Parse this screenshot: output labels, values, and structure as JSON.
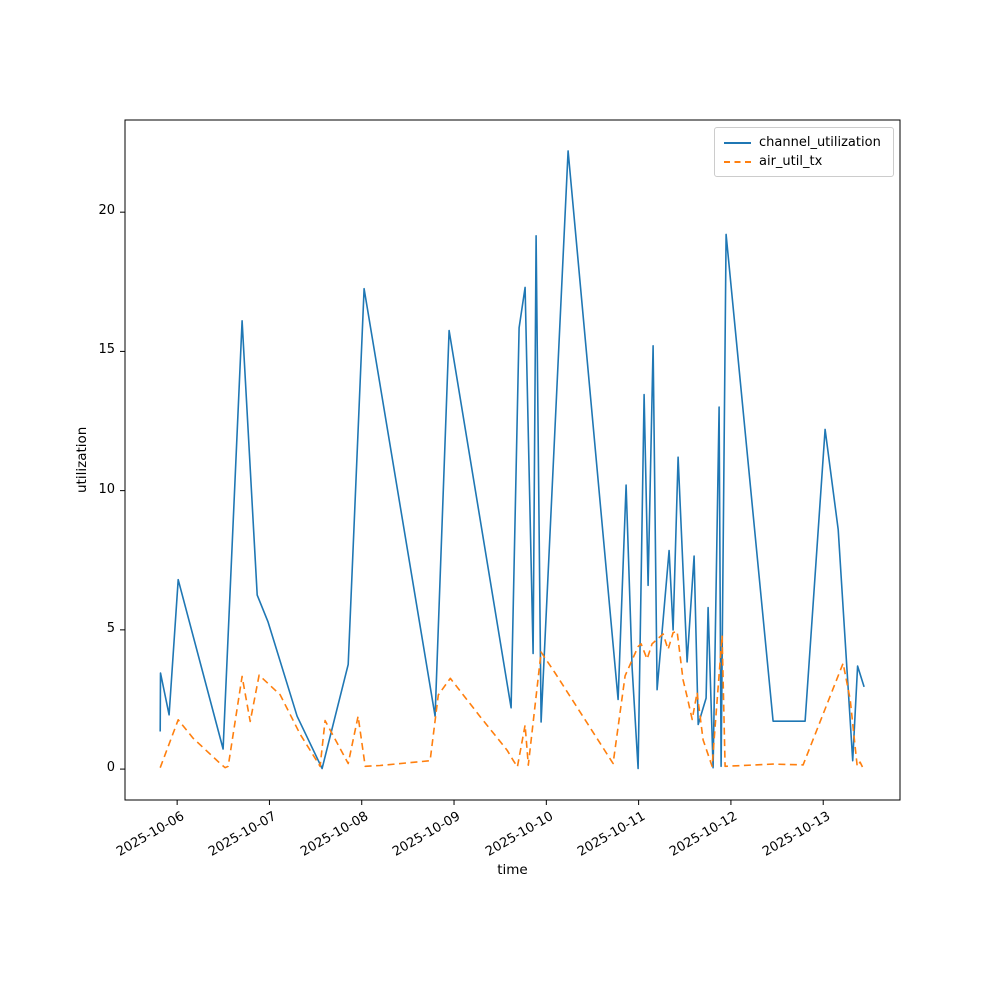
{
  "chart_data": {
    "type": "line",
    "title": "",
    "xlabel": "time",
    "ylabel": "utilization",
    "x_axis_unit": "days since 2025-10-06",
    "xlim_days": [
      -0.565,
      7.832
    ],
    "ylim": [
      -1.11,
      23.31
    ],
    "grid": false,
    "legend_position": "upper right",
    "x_ticks": [
      {
        "day": 0,
        "label": "2025-10-06"
      },
      {
        "day": 1,
        "label": "2025-10-07"
      },
      {
        "day": 2,
        "label": "2025-10-08"
      },
      {
        "day": 3,
        "label": "2025-10-09"
      },
      {
        "day": 4,
        "label": "2025-10-10"
      },
      {
        "day": 5,
        "label": "2025-10-11"
      },
      {
        "day": 6,
        "label": "2025-10-12"
      },
      {
        "day": 7,
        "label": "2025-10-13"
      }
    ],
    "y_ticks": [
      {
        "value": 0,
        "label": "0"
      },
      {
        "value": 5,
        "label": "5"
      },
      {
        "value": 10,
        "label": "10"
      },
      {
        "value": 15,
        "label": "15"
      },
      {
        "value": 20,
        "label": "20"
      }
    ],
    "series": [
      {
        "name": "channel_utilization",
        "color": "#1f77b4",
        "line_style": "solid",
        "points": [
          [
            -0.184,
            1.35
          ],
          [
            -0.18,
            3.45
          ],
          [
            -0.087,
            1.95
          ],
          [
            0.011,
            6.8
          ],
          [
            0.498,
            0.72
          ],
          [
            0.704,
            16.1
          ],
          [
            0.867,
            6.25
          ],
          [
            0.986,
            5.28
          ],
          [
            1.3,
            1.9
          ],
          [
            1.571,
            0.02
          ],
          [
            1.853,
            3.76
          ],
          [
            2.026,
            17.25
          ],
          [
            2.795,
            1.9
          ],
          [
            2.947,
            15.75
          ],
          [
            3.618,
            2.2
          ],
          [
            3.705,
            15.85
          ],
          [
            3.77,
            17.3
          ],
          [
            3.857,
            4.15
          ],
          [
            3.889,
            19.15
          ],
          [
            3.943,
            1.69
          ],
          [
            4.236,
            22.2
          ],
          [
            4.778,
            2.5
          ],
          [
            4.864,
            10.2
          ],
          [
            4.929,
            3.65
          ],
          [
            4.994,
            0.02
          ],
          [
            5.059,
            13.45
          ],
          [
            5.103,
            6.6
          ],
          [
            5.157,
            15.2
          ],
          [
            5.2,
            2.85
          ],
          [
            5.33,
            7.85
          ],
          [
            5.374,
            5.0
          ],
          [
            5.428,
            11.2
          ],
          [
            5.525,
            3.85
          ],
          [
            5.601,
            7.65
          ],
          [
            5.645,
            1.6
          ],
          [
            5.731,
            2.55
          ],
          [
            5.753,
            5.8
          ],
          [
            5.807,
            0.05
          ],
          [
            5.872,
            13.0
          ],
          [
            5.894,
            0.1
          ],
          [
            5.948,
            19.2
          ],
          [
            6.457,
            1.72
          ],
          [
            6.804,
            1.72
          ],
          [
            7.021,
            12.2
          ],
          [
            7.162,
            8.6
          ],
          [
            7.32,
            0.3
          ],
          [
            7.373,
            3.7
          ],
          [
            7.443,
            2.95
          ]
        ]
      },
      {
        "name": "air_util_tx",
        "color": "#ff7f0e",
        "line_style": "dashed",
        "points": [
          [
            -0.184,
            0.05
          ],
          [
            0.011,
            1.77
          ],
          [
            0.173,
            1.11
          ],
          [
            0.466,
            0.2
          ],
          [
            0.52,
            0.05
          ],
          [
            0.553,
            0.1
          ],
          [
            0.704,
            3.33
          ],
          [
            0.791,
            1.71
          ],
          [
            0.888,
            3.37
          ],
          [
            1.116,
            2.67
          ],
          [
            1.333,
            1.25
          ],
          [
            1.549,
            0.1
          ],
          [
            1.603,
            1.74
          ],
          [
            1.853,
            0.2
          ],
          [
            1.961,
            1.9
          ],
          [
            2.037,
            0.1
          ],
          [
            2.199,
            0.13
          ],
          [
            2.741,
            0.3
          ],
          [
            2.83,
            2.66
          ],
          [
            2.96,
            3.26
          ],
          [
            3.283,
            1.88
          ],
          [
            3.575,
            0.68
          ],
          [
            3.64,
            0.32
          ],
          [
            3.687,
            0.08
          ],
          [
            3.77,
            1.58
          ],
          [
            3.805,
            0.14
          ],
          [
            3.943,
            4.2
          ],
          [
            4.095,
            3.45
          ],
          [
            4.723,
            0.2
          ],
          [
            4.853,
            3.35
          ],
          [
            4.994,
            4.4
          ],
          [
            5.027,
            4.5
          ],
          [
            5.092,
            3.95
          ],
          [
            5.146,
            4.5
          ],
          [
            5.265,
            4.85
          ],
          [
            5.319,
            4.3
          ],
          [
            5.374,
            4.9
          ],
          [
            5.417,
            4.95
          ],
          [
            5.482,
            3.2
          ],
          [
            5.525,
            2.6
          ],
          [
            5.58,
            1.78
          ],
          [
            5.634,
            2.75
          ],
          [
            5.699,
            1.05
          ],
          [
            5.796,
            0.1
          ],
          [
            5.905,
            4.8
          ],
          [
            5.937,
            0.1
          ],
          [
            6.457,
            0.18
          ],
          [
            6.782,
            0.15
          ],
          [
            7.216,
            3.8
          ],
          [
            7.292,
            2.5
          ],
          [
            7.368,
            0.1
          ],
          [
            7.4,
            0.25
          ],
          [
            7.433,
            0.02
          ]
        ]
      }
    ]
  },
  "legend": {
    "items": [
      {
        "label": "channel_utilization"
      },
      {
        "label": "air_util_tx"
      }
    ]
  }
}
